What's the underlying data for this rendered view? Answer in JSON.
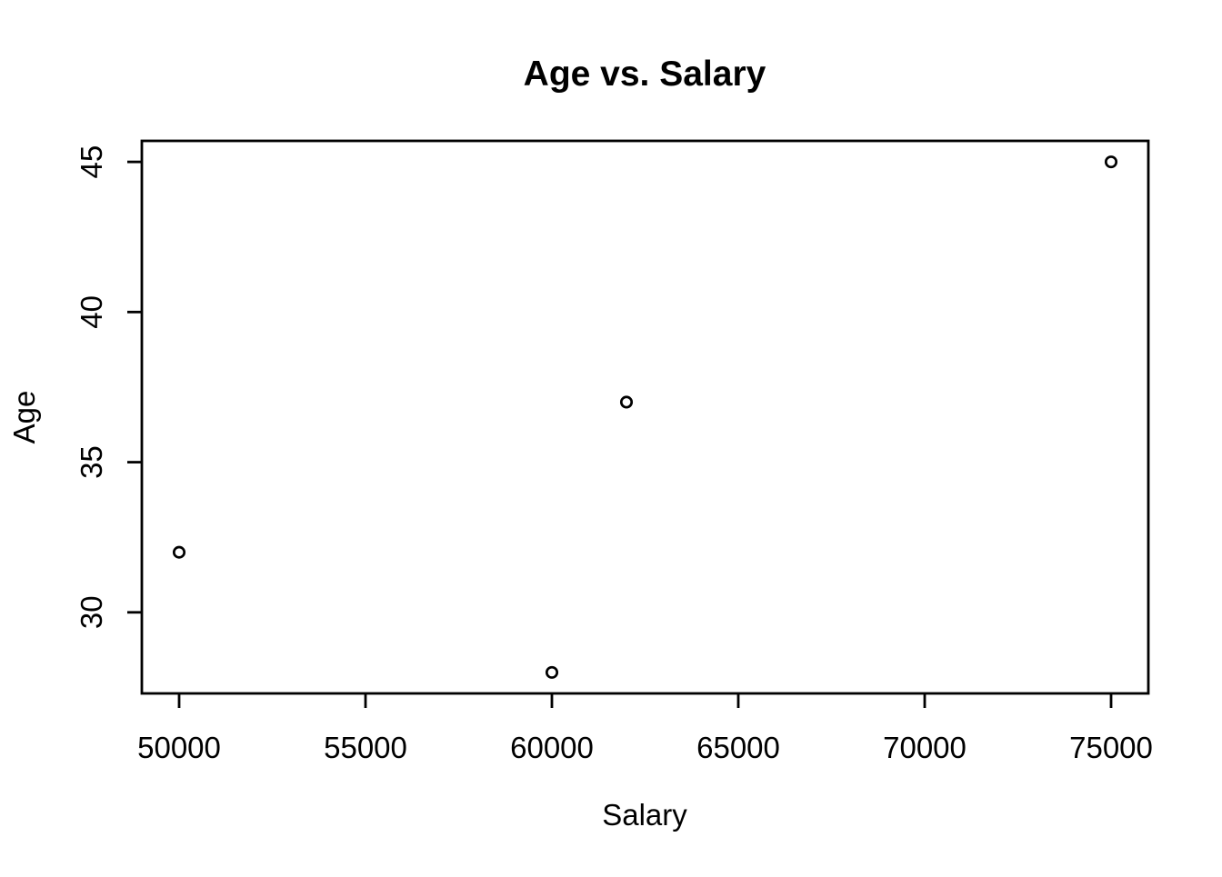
{
  "chart_data": {
    "type": "scatter",
    "title": "Age vs. Salary",
    "xlabel": "Salary",
    "ylabel": "Age",
    "points": [
      {
        "x": 50000,
        "y": 32
      },
      {
        "x": 60000,
        "y": 28
      },
      {
        "x": 62000,
        "y": 37
      },
      {
        "x": 75000,
        "y": 45
      }
    ],
    "x_ticks": [
      50000,
      55000,
      60000,
      65000,
      70000,
      75000
    ],
    "y_ticks": [
      30,
      35,
      40,
      45
    ],
    "x_tick_labels": [
      "50000",
      "55000",
      "60000",
      "65000",
      "70000",
      "75000"
    ],
    "y_tick_labels": [
      "30",
      "35",
      "40",
      "45"
    ],
    "xlim": [
      49000,
      76000
    ],
    "ylim": [
      27.3,
      45.7
    ],
    "grid": false,
    "legend": "none",
    "marker": "open-circle",
    "colors": {
      "foreground": "#000000",
      "background": "#ffffff"
    }
  }
}
